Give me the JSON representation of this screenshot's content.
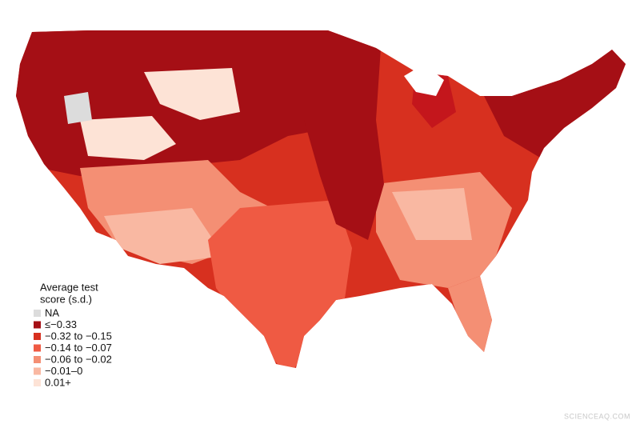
{
  "legend": {
    "title": [
      "Average test",
      "score (s.d.)"
    ],
    "items": [
      {
        "label": "NA",
        "color": "#dcdcdc"
      },
      {
        "label": "≤−0.33",
        "color": "#a50f15"
      },
      {
        "label": "−0.32 to −0.15",
        "color": "#d7301f"
      },
      {
        "label": "−0.14 to −0.07",
        "color": "#ef5a43"
      },
      {
        "label": "−0.06 to −0.02",
        "color": "#f48f74"
      },
      {
        "label": "−0.01–0",
        "color": "#f9b8a2"
      },
      {
        "label": "0.01+",
        "color": "#fde3d6"
      }
    ]
  },
  "watermark": "SCIENCEAQ.COM"
}
